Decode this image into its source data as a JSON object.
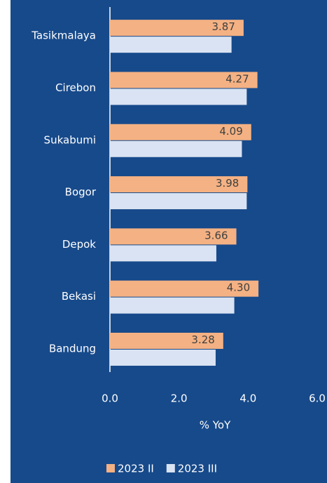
{
  "chart_data": {
    "type": "hbar",
    "categories": [
      "Tasikmalaya",
      "Cirebon",
      "Sukabumi",
      "Bogor",
      "Depok",
      "Bekasi",
      "Bandung"
    ],
    "series": [
      {
        "name": "2023 II",
        "color": "#f4b183",
        "values": [
          3.87,
          4.27,
          4.09,
          3.98,
          3.66,
          4.3,
          3.28
        ],
        "value_labels": [
          "3.87",
          "4.27",
          "4.09",
          "3.98",
          "3.66",
          "4.30",
          "3.28"
        ]
      },
      {
        "name": "2023 III",
        "color": "#dae3f3",
        "values": [
          3.52,
          3.96,
          3.82,
          3.96,
          3.08,
          3.6,
          3.06
        ]
      }
    ],
    "x_label": "% YoY",
    "xlim": [
      0,
      6
    ],
    "xticks": [
      {
        "value": 0,
        "label": "0.0"
      },
      {
        "value": 2,
        "label": "2.0"
      },
      {
        "value": 4,
        "label": "4.0"
      },
      {
        "value": 6,
        "label": "6.0"
      }
    ],
    "legend": "bottom",
    "background": "#174a8b"
  }
}
